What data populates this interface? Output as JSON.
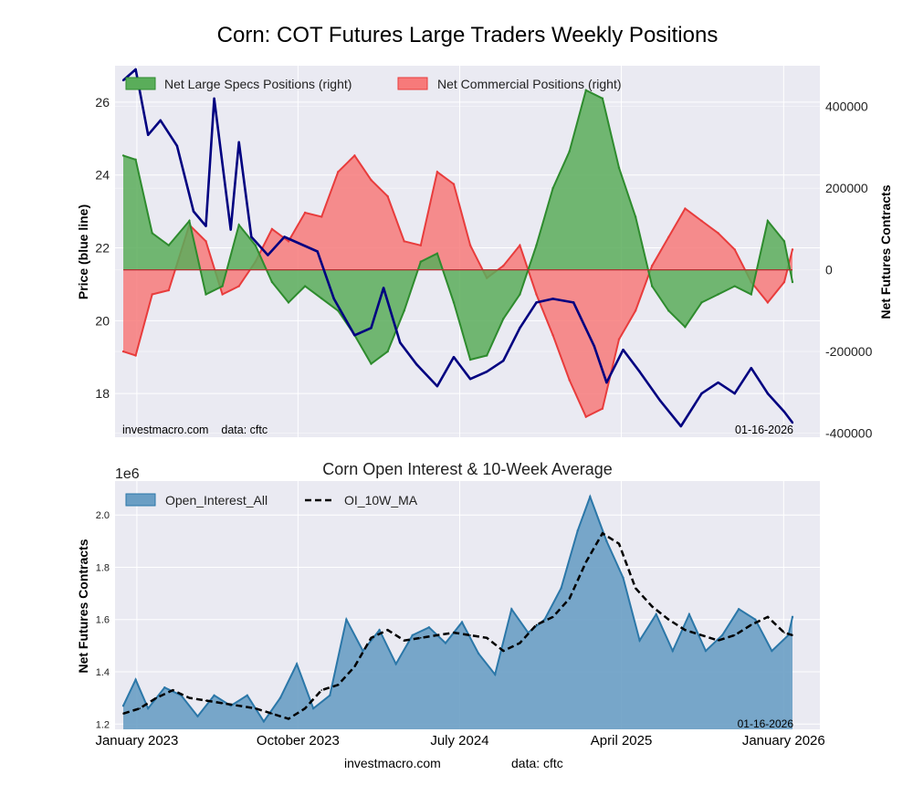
{
  "title": "Corn: COT Futures Large Traders Weekly Positions",
  "chart_data": [
    {
      "type": "area",
      "left_ylabel": "Price (blue line)",
      "right_ylabel": "Net Futures Contracts",
      "left_ylim": [
        16.8,
        27.0
      ],
      "right_ylim": [
        -410000,
        500000
      ],
      "left_ticks": [
        "18",
        "20",
        "22",
        "24",
        "26"
      ],
      "right_ticks": [
        "-400000",
        "-200000",
        "0",
        "200000",
        "400000"
      ],
      "grid": true,
      "legend_position": "top",
      "legend": [
        "Net Large Specs Positions (right)",
        "Net Commercial Positions (right)"
      ],
      "source_text": "investmacro.com    data: cftc",
      "date_text": "01-16-2026",
      "colors": {
        "specs": "#2e8b2e",
        "specs_fill": "#5aad5a",
        "commercial": "#e83c3c",
        "commercial_fill": "#f77a7a",
        "price": "#000080"
      },
      "x_range": [
        "2022-11-25",
        "2026-01-16"
      ],
      "series": [
        {
          "name": "Net Large Specs Positions (right)",
          "x": [
            "2022-12-09",
            "2022-12-30",
            "2023-01-27",
            "2023-02-24",
            "2023-03-31",
            "2023-04-28",
            "2023-05-26",
            "2023-06-23",
            "2023-07-21",
            "2023-08-18",
            "2023-09-15",
            "2023-10-13",
            "2023-11-10",
            "2023-12-08",
            "2024-01-05",
            "2024-02-02",
            "2024-03-01",
            "2024-03-29",
            "2024-04-26",
            "2024-05-24",
            "2024-06-21",
            "2024-07-19",
            "2024-08-16",
            "2024-09-13",
            "2024-10-11",
            "2024-11-08",
            "2024-12-06",
            "2025-01-03",
            "2025-01-31",
            "2025-02-28",
            "2025-03-28",
            "2025-04-25",
            "2025-05-23",
            "2025-06-20",
            "2025-07-18",
            "2025-08-15",
            "2025-09-12",
            "2025-10-10",
            "2025-11-07",
            "2025-12-05",
            "2026-01-02",
            "2026-01-16"
          ],
          "values": [
            280000,
            270000,
            90000,
            60000,
            120000,
            -60000,
            -40000,
            110000,
            60000,
            -30000,
            -80000,
            -40000,
            -70000,
            -100000,
            -160000,
            -230000,
            -200000,
            -100000,
            20000,
            40000,
            -80000,
            -220000,
            -210000,
            -120000,
            -60000,
            60000,
            200000,
            290000,
            440000,
            420000,
            250000,
            130000,
            -40000,
            -100000,
            -140000,
            -80000,
            -60000,
            -40000,
            -60000,
            120000,
            70000,
            -30000
          ]
        },
        {
          "name": "Net Commercial Positions (right)",
          "x": [
            "2022-12-09",
            "2022-12-30",
            "2023-01-27",
            "2023-02-24",
            "2023-03-31",
            "2023-04-28",
            "2023-05-26",
            "2023-06-23",
            "2023-07-21",
            "2023-08-18",
            "2023-09-15",
            "2023-10-13",
            "2023-11-10",
            "2023-12-08",
            "2024-01-05",
            "2024-02-02",
            "2024-03-01",
            "2024-03-29",
            "2024-04-26",
            "2024-05-24",
            "2024-06-21",
            "2024-07-19",
            "2024-08-16",
            "2024-09-13",
            "2024-10-11",
            "2024-11-08",
            "2024-12-06",
            "2025-01-03",
            "2025-01-31",
            "2025-02-28",
            "2025-03-28",
            "2025-04-25",
            "2025-05-23",
            "2025-06-20",
            "2025-07-18",
            "2025-08-15",
            "2025-09-12",
            "2025-10-10",
            "2025-11-07",
            "2025-12-05",
            "2026-01-02",
            "2026-01-16"
          ],
          "values": [
            -200000,
            -210000,
            -60000,
            -50000,
            110000,
            70000,
            -60000,
            -40000,
            20000,
            100000,
            70000,
            140000,
            130000,
            240000,
            280000,
            220000,
            180000,
            70000,
            60000,
            240000,
            210000,
            60000,
            -20000,
            10000,
            60000,
            -60000,
            -160000,
            -270000,
            -360000,
            -340000,
            -170000,
            -100000,
            10000,
            80000,
            150000,
            120000,
            90000,
            50000,
            -30000,
            -80000,
            -30000,
            50000
          ]
        },
        {
          "name": "Price",
          "x": [
            "2022-12-09",
            "2022-12-30",
            "2023-01-20",
            "2023-02-10",
            "2023-03-10",
            "2023-04-07",
            "2023-04-28",
            "2023-05-12",
            "2023-06-09",
            "2023-06-23",
            "2023-07-14",
            "2023-08-11",
            "2023-09-08",
            "2023-10-06",
            "2023-11-03",
            "2023-12-01",
            "2024-01-05",
            "2024-02-02",
            "2024-02-23",
            "2024-03-22",
            "2024-04-19",
            "2024-05-24",
            "2024-06-21",
            "2024-07-19",
            "2024-08-16",
            "2024-09-13",
            "2024-10-11",
            "2024-11-08",
            "2024-12-06",
            "2025-01-10",
            "2025-02-14",
            "2025-03-07",
            "2025-04-04",
            "2025-05-02",
            "2025-06-06",
            "2025-07-11",
            "2025-08-15",
            "2025-09-12",
            "2025-10-10",
            "2025-11-07",
            "2025-12-05",
            "2026-01-02",
            "2026-01-16"
          ],
          "values": [
            26.6,
            26.9,
            25.1,
            25.5,
            24.8,
            23.0,
            22.6,
            26.1,
            22.5,
            24.9,
            22.3,
            21.8,
            22.3,
            22.1,
            21.9,
            20.6,
            19.6,
            19.8,
            20.9,
            19.4,
            18.8,
            18.2,
            19.0,
            18.4,
            18.6,
            18.9,
            19.8,
            20.5,
            20.6,
            20.5,
            19.3,
            18.3,
            19.2,
            18.6,
            17.8,
            17.1,
            18.0,
            18.3,
            18.0,
            18.7,
            18.0,
            17.5,
            17.2
          ]
        }
      ]
    },
    {
      "type": "area",
      "title": "Corn Open Interest & 10-Week Average",
      "ylabel": "Net Futures Contracts",
      "ylim": [
        1180000,
        2130000
      ],
      "y_ticks": [
        "1.2",
        "1.4",
        "1.6",
        "1.8",
        "2.0"
      ],
      "y_offset_label": "1e6",
      "x_tick_labels": [
        "January 2023",
        "October 2023",
        "July 2024",
        "April 2025",
        "January 2026"
      ],
      "x_tick_dates": [
        "2023-01-01",
        "2023-10-01",
        "2024-07-01",
        "2025-04-01",
        "2026-01-01"
      ],
      "x_range": [
        "2022-11-25",
        "2026-01-16"
      ],
      "grid": true,
      "legend_position": "top",
      "legend": [
        "Open_Interest_All",
        "OI_10W_MA"
      ],
      "date_text": "01-16-2026",
      "colors": {
        "oi_fill": "#6a9ec4",
        "oi_line": "#2b77a8",
        "ma_line": "#000000"
      },
      "series": [
        {
          "name": "Open_Interest_All",
          "x": [
            "2022-12-09",
            "2022-12-30",
            "2023-01-20",
            "2023-02-17",
            "2023-03-17",
            "2023-04-14",
            "2023-05-12",
            "2023-06-09",
            "2023-07-07",
            "2023-08-04",
            "2023-09-01",
            "2023-09-29",
            "2023-10-27",
            "2023-11-24",
            "2023-12-22",
            "2024-01-19",
            "2024-02-16",
            "2024-03-15",
            "2024-04-12",
            "2024-05-10",
            "2024-06-07",
            "2024-07-05",
            "2024-08-02",
            "2024-08-30",
            "2024-09-27",
            "2024-10-25",
            "2024-11-22",
            "2024-12-20",
            "2025-01-17",
            "2025-02-07",
            "2025-03-07",
            "2025-04-04",
            "2025-05-02",
            "2025-05-30",
            "2025-06-27",
            "2025-07-25",
            "2025-08-22",
            "2025-09-19",
            "2025-10-17",
            "2025-11-14",
            "2025-12-12",
            "2026-01-09",
            "2026-01-16"
          ],
          "values": [
            1270000,
            1370000,
            1260000,
            1340000,
            1310000,
            1230000,
            1310000,
            1270000,
            1310000,
            1210000,
            1300000,
            1430000,
            1260000,
            1310000,
            1600000,
            1480000,
            1560000,
            1430000,
            1540000,
            1570000,
            1510000,
            1590000,
            1470000,
            1390000,
            1640000,
            1550000,
            1600000,
            1720000,
            1940000,
            2070000,
            1900000,
            1760000,
            1520000,
            1620000,
            1480000,
            1620000,
            1480000,
            1540000,
            1640000,
            1600000,
            1480000,
            1540000,
            1610000
          ]
        },
        {
          "name": "OI_10W_MA",
          "x": [
            "2022-12-09",
            "2023-01-06",
            "2023-02-03",
            "2023-03-03",
            "2023-03-31",
            "2023-04-28",
            "2023-05-26",
            "2023-06-23",
            "2023-07-21",
            "2023-08-18",
            "2023-09-15",
            "2023-10-13",
            "2023-11-10",
            "2023-12-08",
            "2024-01-05",
            "2024-02-02",
            "2024-03-01",
            "2024-03-29",
            "2024-04-26",
            "2024-05-24",
            "2024-06-21",
            "2024-07-19",
            "2024-08-16",
            "2024-09-13",
            "2024-10-11",
            "2024-11-08",
            "2024-12-06",
            "2025-01-03",
            "2025-01-31",
            "2025-02-28",
            "2025-03-28",
            "2025-04-25",
            "2025-05-23",
            "2025-06-20",
            "2025-07-18",
            "2025-08-15",
            "2025-09-12",
            "2025-10-10",
            "2025-11-07",
            "2025-12-05",
            "2026-01-02",
            "2026-01-16"
          ],
          "values": [
            1240000,
            1260000,
            1300000,
            1330000,
            1300000,
            1290000,
            1280000,
            1270000,
            1260000,
            1240000,
            1220000,
            1260000,
            1330000,
            1350000,
            1420000,
            1530000,
            1560000,
            1520000,
            1530000,
            1540000,
            1550000,
            1540000,
            1530000,
            1480000,
            1510000,
            1580000,
            1610000,
            1680000,
            1820000,
            1930000,
            1890000,
            1720000,
            1650000,
            1600000,
            1560000,
            1540000,
            1520000,
            1540000,
            1580000,
            1610000,
            1550000,
            1540000
          ]
        }
      ]
    }
  ],
  "footer": {
    "left": "investmacro.com",
    "right": "data: cftc"
  }
}
